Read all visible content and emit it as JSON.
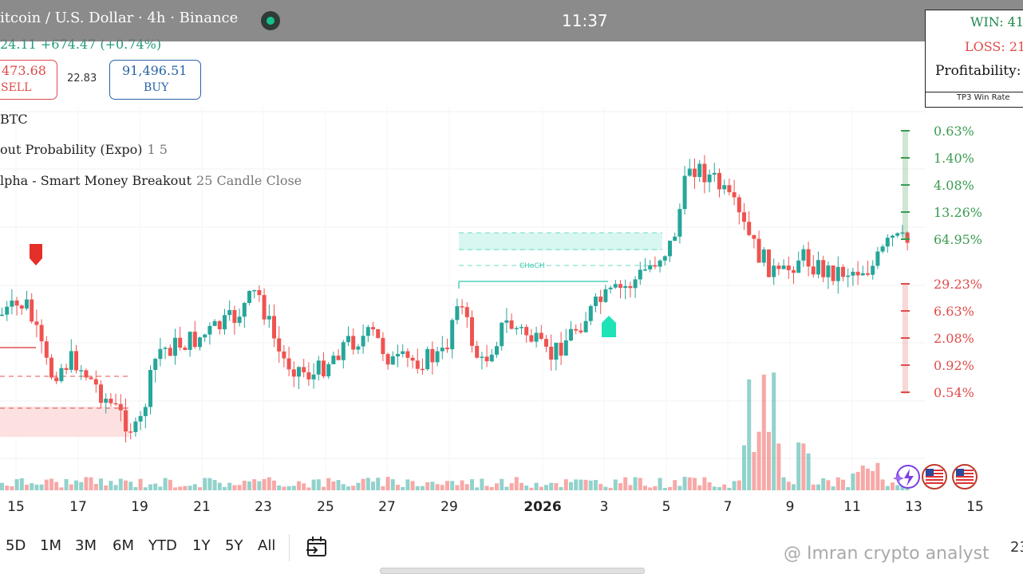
{
  "header": {
    "title": "itcoin / U.S. Dollar · 4h · Binance",
    "price_change": "24.11 +674.47 (+0.74%)",
    "clock": "11:37"
  },
  "trade": {
    "sell_price": "473.68",
    "sell_label": "SELL",
    "spread": "22.83",
    "buy_price": "91,496.51",
    "buy_label": "BUY"
  },
  "indicators": [
    {
      "name": "BTC",
      "params": ""
    },
    {
      "name": "out Probability (Expo)",
      "params": "1 5"
    },
    {
      "name": "lpha - Smart Money Breakout",
      "params": "25 Candle Close"
    }
  ],
  "stats_table": {
    "win": "WIN: 41",
    "loss": "LOSS: 21",
    "profitability": "Profitability:",
    "footer": "TP3 Win Rate"
  },
  "probabilities": {
    "green": [
      "0.63%",
      "1.40%",
      "4.08%",
      "13.26%",
      "64.95%"
    ],
    "red": [
      "29.23%",
      "6.63%",
      "2.08%",
      "0.92%",
      "0.54%"
    ],
    "colors": {
      "green": "#3a9b50",
      "red": "#e04a4a"
    }
  },
  "chart_labels": {
    "choch": "CHoCH"
  },
  "x_axis": [
    "15",
    "17",
    "19",
    "21",
    "23",
    "25",
    "27",
    "29",
    "2026",
    "3",
    "5",
    "7",
    "9",
    "11",
    "13",
    "15"
  ],
  "timeframes": [
    "5D",
    "1M",
    "3M",
    "6M",
    "YTD",
    "1Y",
    "5Y",
    "All"
  ],
  "watermark": "@ Imran crypto analyst",
  "corner_value": "23",
  "colors": {
    "up": "#26a69a",
    "down": "#ef5350",
    "accent": "#1ee3b6"
  },
  "icons": [
    "calendar-range-icon",
    "sparkle-icon",
    "us-flag-icon"
  ]
}
